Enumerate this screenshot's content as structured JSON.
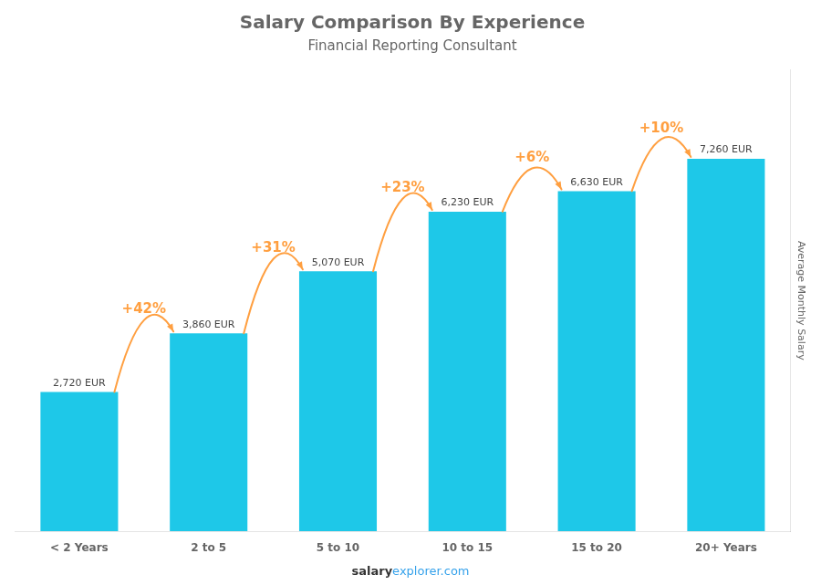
{
  "chart_data": {
    "type": "bar",
    "title": "Salary Comparison By Experience",
    "subtitle": "Financial Reporting Consultant",
    "ylabel": "Average Monthly Salary",
    "categories": [
      "< 2 Years",
      "2 to 5",
      "5 to 10",
      "10 to 15",
      "15 to 20",
      "20+ Years"
    ],
    "values": [
      2720,
      3860,
      5070,
      6230,
      6630,
      7260
    ],
    "value_labels": [
      "2,720 EUR",
      "3,860 EUR",
      "5,070 EUR",
      "6,230 EUR",
      "6,630 EUR",
      "7,260 EUR"
    ],
    "data_labels": true,
    "color": "#1EC8E8",
    "annotations": [
      "+42%",
      "+31%",
      "+23%",
      "+6%",
      "+10%"
    ],
    "footer": [
      "salary",
      "explorer.com"
    ],
    "ylim": [
      0,
      9000
    ],
    "grid": false,
    "tick_labels": "x"
  }
}
